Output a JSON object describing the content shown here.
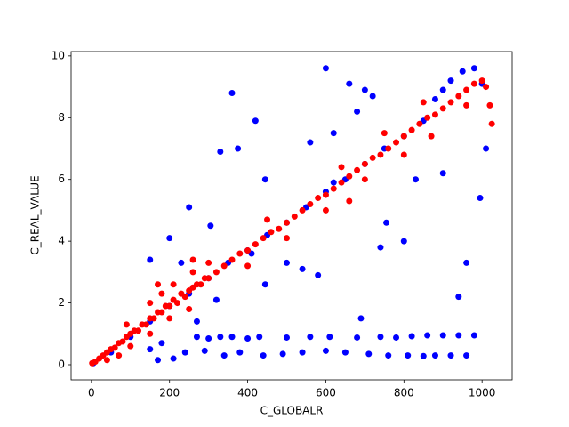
{
  "chart_data": {
    "type": "scatter",
    "x_label": "C_GLOBALR",
    "y_label": "C_REAL_VALUE",
    "xlim": [
      -52,
      1077
    ],
    "ylim": [
      -0.49,
      10.14
    ],
    "xticks": [
      0,
      200,
      400,
      600,
      800,
      1000
    ],
    "yticks": [
      0,
      2,
      4,
      6,
      8,
      10
    ],
    "series": [
      {
        "color": "blue",
        "x": [
          5,
          50,
          100,
          150,
          200,
          250,
          300,
          350,
          400,
          450,
          500,
          550,
          600,
          650,
          700,
          750,
          800,
          850,
          880,
          900,
          920,
          950,
          980,
          1000,
          360,
          420,
          600,
          660,
          700,
          330,
          375,
          250,
          445,
          560,
          620,
          680,
          720,
          230,
          150,
          200,
          305,
          410,
          500,
          540,
          580,
          320,
          445,
          690,
          740,
          800,
          830,
          900,
          960,
          940,
          995,
          1010,
          620,
          755,
          270,
          180,
          150,
          270,
          300,
          330,
          360,
          400,
          430,
          500,
          560,
          610,
          680,
          740,
          780,
          820,
          860,
          900,
          940,
          980,
          170,
          210,
          240,
          290,
          340,
          380,
          440,
          490,
          540,
          600,
          650,
          710,
          760,
          810,
          850,
          880,
          920,
          960
        ],
        "values": [
          0.05,
          0.4,
          0.9,
          1.4,
          1.9,
          2.3,
          2.8,
          3.3,
          3.7,
          4.2,
          4.6,
          5.1,
          5.6,
          6.0,
          6.5,
          7.0,
          7.4,
          7.9,
          8.6,
          8.9,
          9.2,
          9.5,
          9.6,
          9.1,
          8.8,
          7.9,
          9.6,
          9.1,
          8.9,
          6.9,
          7.0,
          5.1,
          6.0,
          7.2,
          7.5,
          8.2,
          8.7,
          3.3,
          3.4,
          4.1,
          4.5,
          3.6,
          3.3,
          3.1,
          2.9,
          2.1,
          2.6,
          1.5,
          3.8,
          4.0,
          6.0,
          6.2,
          3.3,
          2.2,
          5.4,
          7.0,
          5.9,
          4.6,
          1.4,
          0.7,
          0.5,
          0.9,
          0.85,
          0.9,
          0.9,
          0.85,
          0.9,
          0.88,
          0.9,
          0.9,
          0.88,
          0.9,
          0.88,
          0.92,
          0.95,
          0.95,
          0.95,
          0.95,
          0.15,
          0.2,
          0.4,
          0.45,
          0.3,
          0.4,
          0.3,
          0.35,
          0.4,
          0.45,
          0.4,
          0.35,
          0.3,
          0.3,
          0.28,
          0.3,
          0.3,
          0.3
        ]
      },
      {
        "color": "red",
        "x": [
          2,
          10,
          20,
          30,
          40,
          50,
          60,
          70,
          80,
          90,
          100,
          110,
          120,
          130,
          140,
          150,
          160,
          170,
          180,
          190,
          200,
          210,
          220,
          230,
          240,
          250,
          260,
          270,
          280,
          290,
          300,
          320,
          340,
          360,
          380,
          400,
          420,
          440,
          460,
          480,
          500,
          520,
          540,
          560,
          580,
          600,
          620,
          640,
          660,
          680,
          700,
          720,
          740,
          760,
          780,
          800,
          820,
          840,
          860,
          880,
          900,
          920,
          940,
          960,
          980,
          1000,
          1020,
          1025,
          1010,
          90,
          150,
          180,
          210,
          260,
          300,
          100,
          150,
          200,
          250,
          400,
          450,
          500,
          600,
          640,
          700,
          750,
          800,
          850,
          870,
          960,
          170,
          260,
          660,
          40,
          70
        ],
        "values": [
          0.05,
          0.1,
          0.2,
          0.3,
          0.4,
          0.5,
          0.55,
          0.7,
          0.75,
          0.9,
          1.0,
          1.1,
          1.1,
          1.3,
          1.3,
          1.5,
          1.5,
          1.7,
          1.7,
          1.9,
          1.9,
          2.1,
          2.0,
          2.3,
          2.2,
          2.4,
          2.5,
          2.6,
          2.6,
          2.8,
          2.8,
          3.0,
          3.2,
          3.4,
          3.6,
          3.7,
          3.9,
          4.1,
          4.3,
          4.4,
          4.6,
          4.8,
          5.0,
          5.2,
          5.4,
          5.5,
          5.7,
          5.9,
          6.1,
          6.3,
          6.5,
          6.7,
          6.8,
          7.0,
          7.2,
          7.4,
          7.6,
          7.8,
          8.0,
          8.1,
          8.3,
          8.5,
          8.7,
          8.9,
          9.1,
          9.2,
          8.4,
          7.8,
          9.0,
          1.3,
          2.0,
          2.3,
          2.6,
          3.0,
          3.3,
          0.6,
          1.0,
          1.5,
          1.8,
          3.2,
          4.7,
          4.1,
          5.0,
          6.4,
          6.0,
          7.5,
          6.8,
          8.5,
          7.4,
          8.4,
          2.6,
          3.4,
          5.3,
          0.15,
          0.3
        ]
      }
    ]
  }
}
